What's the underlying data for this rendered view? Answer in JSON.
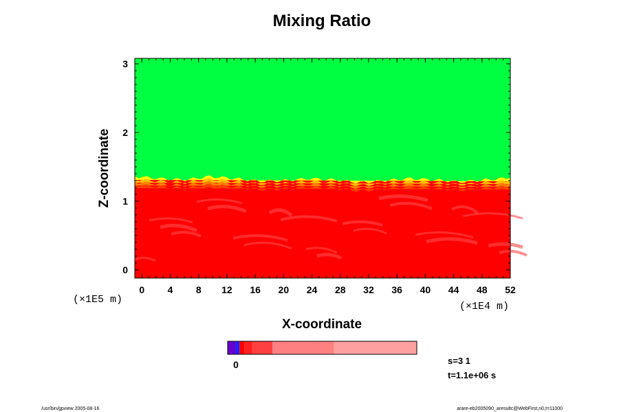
{
  "chart_data": {
    "type": "heatmap",
    "title": "Mixing Ratio",
    "xlabel": "X-coordinate",
    "ylabel": "Z-coordinate",
    "x_unit": "(×1E4 m)",
    "y_unit": "(×1E5 m)",
    "xlim": [
      -1,
      52
    ],
    "ylim": [
      -0.12,
      3.08
    ],
    "x_ticks": [
      "0",
      "4",
      "8",
      "12",
      "16",
      "20",
      "24",
      "28",
      "32",
      "36",
      "40",
      "44",
      "48",
      "52"
    ],
    "y_ticks": [
      "0",
      "1",
      "2",
      "3"
    ],
    "x_tick_values": [
      0,
      4,
      8,
      12,
      16,
      20,
      24,
      28,
      32,
      36,
      40,
      44,
      48,
      52
    ],
    "y_tick_values": [
      0,
      1,
      2,
      3
    ],
    "interface_height": [
      1.36,
      1.33,
      1.31,
      1.36,
      1.33,
      1.29,
      1.3,
      1.33,
      1.31,
      1.27,
      1.3,
      1.33,
      1.31,
      1.28,
      1.31,
      1.34
    ],
    "colors": {
      "upper": "#00ff40",
      "lower": "#ff0000",
      "interface_band": [
        "#ffff00",
        "#ffc000",
        "#ff7f00",
        "#ff4000"
      ],
      "streaks": "#ff4a4a"
    },
    "colorbar": {
      "tick_label": "0",
      "segments": [
        "#6600cc",
        "#2020ff",
        "#ff0000",
        "#ff2020",
        "#ff4040",
        "#ff8080",
        "#ffa0a0"
      ],
      "segment_widths": [
        1,
        0.5,
        0.6,
        1.0,
        2.6,
        7.8,
        10.5
      ]
    }
  },
  "info": {
    "step": "s=3 1",
    "time": "t=1.1e+06 s"
  },
  "footer": {
    "left": "/usr/bin/gpview 2005-08-16",
    "right": "arare-eb2005090_aresultc@WebFirst,n0,t=11000"
  }
}
